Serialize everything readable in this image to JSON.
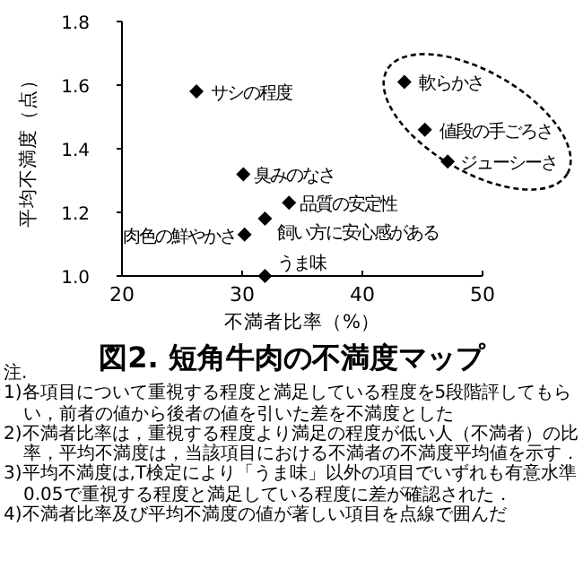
{
  "chart_data": {
    "type": "scatter",
    "title": "図2. 短角牛肉の不満度マップ",
    "xlabel": "不満者比率（%）",
    "ylabel": "平均不満度（点）",
    "x": [
      26.2,
      43.5,
      45.2,
      47.1,
      30.1,
      33.9,
      31.9,
      30.2,
      31.9
    ],
    "values": [
      1.58,
      1.61,
      1.46,
      1.36,
      1.32,
      1.23,
      1.18,
      1.13,
      1.0
    ],
    "color": "#000000",
    "marker": "diamond",
    "grid": false,
    "xlim": [
      20,
      50
    ],
    "ylim": [
      1.0,
      1.8
    ],
    "xticks": [
      20,
      30,
      40,
      50
    ],
    "yticks": [
      {
        "value": 1.0,
        "label": "1.0"
      },
      {
        "value": 1.2,
        "label": "1.2"
      },
      {
        "value": 1.4,
        "label": "1.4"
      },
      {
        "value": 1.6,
        "label": "1.6"
      },
      {
        "value": 1.8,
        "label": "1.8"
      }
    ],
    "annotations": [
      {
        "text": "サシの程度",
        "x": 26.2,
        "y": 1.58
      },
      {
        "text": "軟らかさ",
        "x": 43.5,
        "y": 1.61
      },
      {
        "text": "値段の手ごろさ",
        "x": 45.2,
        "y": 1.46
      },
      {
        "text": "ジューシーさ",
        "x": 47.1,
        "y": 1.36
      },
      {
        "text": "臭みのなさ",
        "x": 30.1,
        "y": 1.32
      },
      {
        "text": "品質の安定性",
        "x": 33.9,
        "y": 1.23
      },
      {
        "text": "飼い方に安心感がある",
        "x": 31.9,
        "y": 1.18
      },
      {
        "text": "肉色の鮮やかさ",
        "x": 30.2,
        "y": 1.13
      },
      {
        "text": "うま味",
        "x": 31.9,
        "y": 1.0
      },
      "注.",
      "1)各項目について重視する程度と満足している程度を5段階評してもらい，前者の値から後者の値を引いた差を不満度とした",
      "2)不満者比率は，重視する程度より満足の程度が低い人（不満者）の比率，平均不満度は，当該項目における不満者の不満度平均値を示す．",
      "3)平均不満度は,T検定により「うま味」以外の項目でいずれも有意水準0.05で重視する程度と満足している程度に差が確認された．",
      "4)不満者比率及び平均不満度の値が著しい項目を点線で囲んだ"
    ]
  }
}
